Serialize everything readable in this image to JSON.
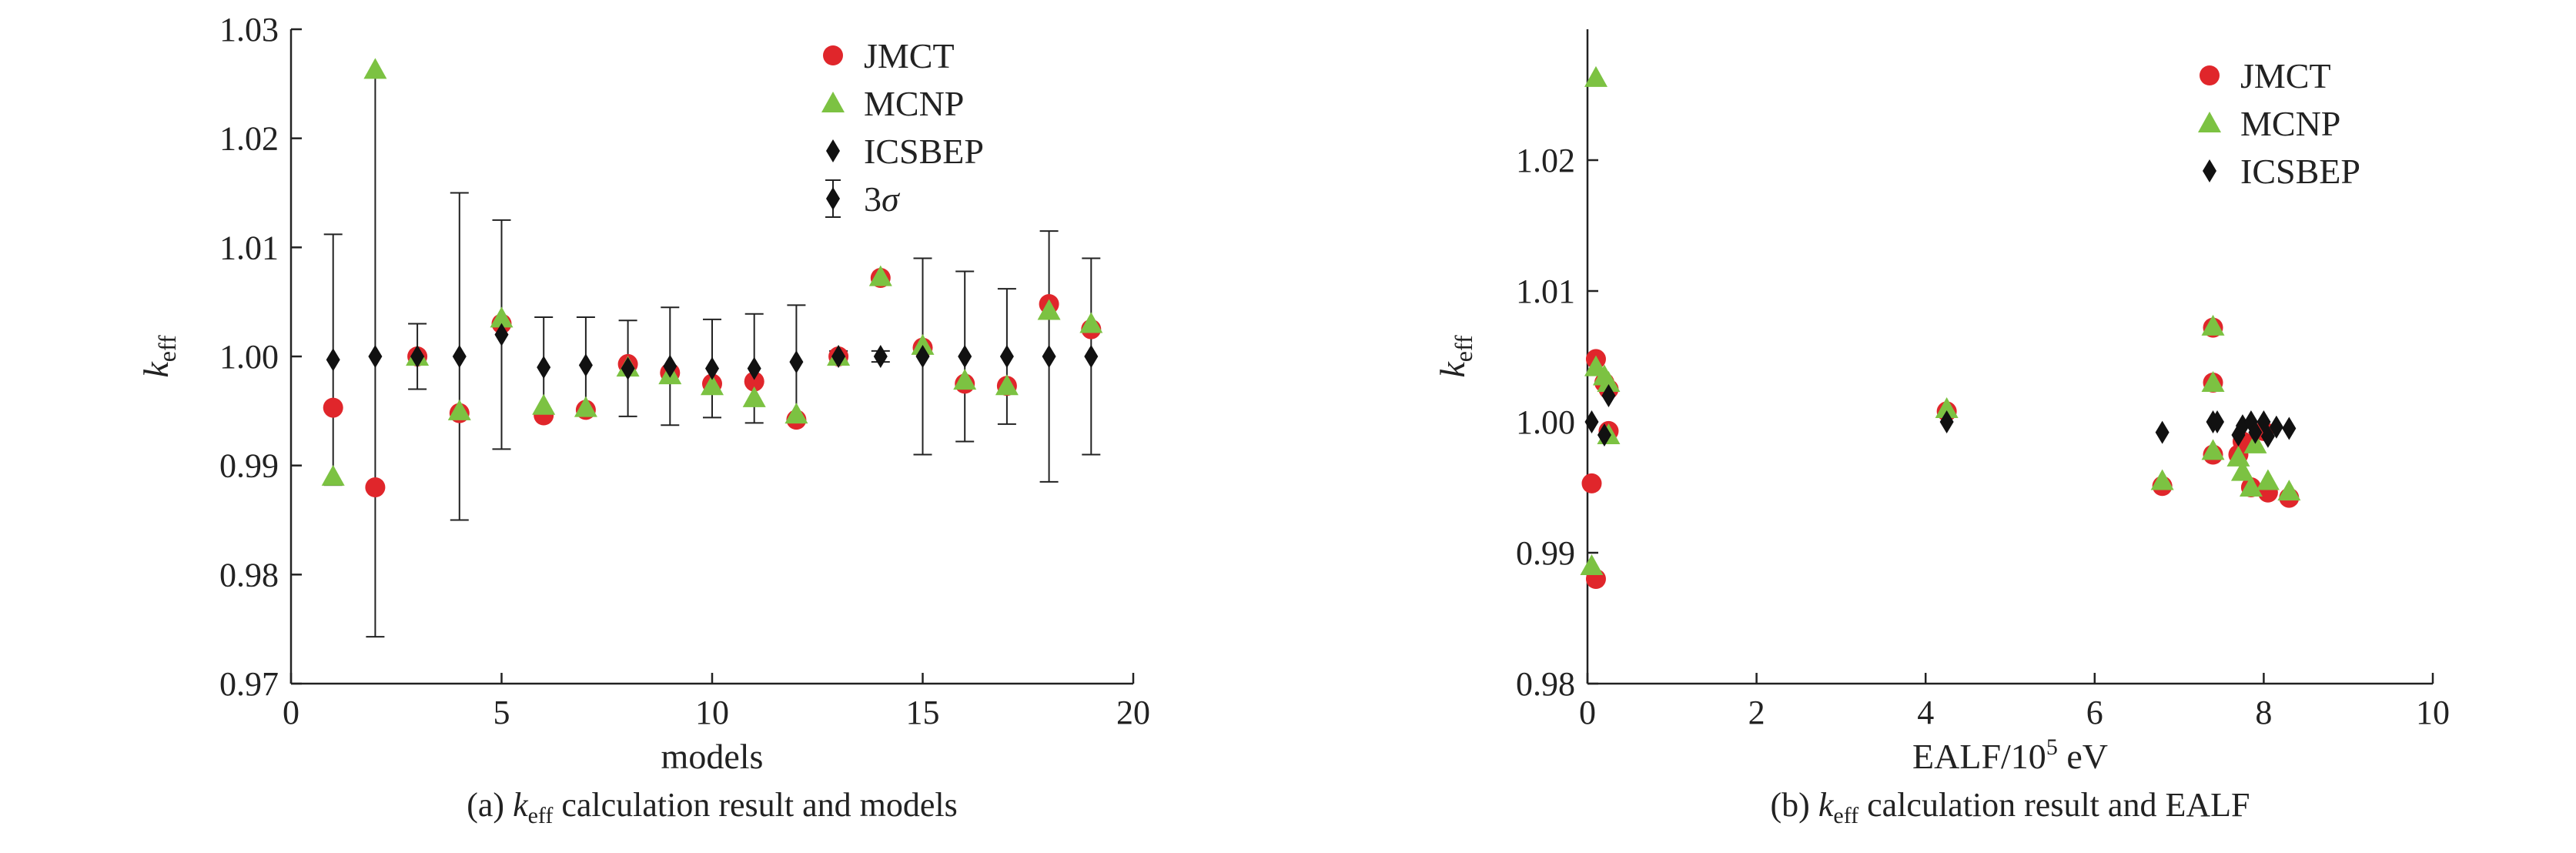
{
  "colors": {
    "jmct": "#e0262b",
    "mcnp": "#7cc242",
    "icsbep": "#111111"
  },
  "chart_data": [
    {
      "type": "scatter",
      "caption": {
        "prefix": "(a) ",
        "k": "k",
        "sub": "eff",
        "rest": " calculation result and models"
      },
      "xlabel": "models",
      "ylabel": {
        "k": "k",
        "sub": "eff"
      },
      "xlim": [
        0,
        20
      ],
      "ylim": [
        0.97,
        1.03
      ],
      "xticks": [
        0,
        5,
        10,
        15,
        20
      ],
      "xtick_labels": [
        "0",
        "5",
        "10",
        "15",
        "20"
      ],
      "yticks": [
        0.97,
        0.98,
        0.99,
        1.0,
        1.01,
        1.02,
        1.03
      ],
      "ytick_labels": [
        "0.97",
        "0.98",
        "0.99",
        "1.00",
        "1.01",
        "1.02",
        "1.03"
      ],
      "legend": {
        "position": "top-right",
        "entries": [
          {
            "label": "JMCT",
            "marker": "circle",
            "series": "jmct"
          },
          {
            "label": "MCNP",
            "marker": "triangle",
            "series": "mcnp"
          },
          {
            "label": "ICSBEP",
            "marker": "diamond",
            "series": "icsbep"
          },
          {
            "label": "3",
            "label_italic": "σ",
            "marker": "diamond-errorbar",
            "series": "icsbep"
          }
        ]
      },
      "x": [
        1,
        2,
        3,
        4,
        5,
        6,
        7,
        8,
        9,
        10,
        11,
        12,
        13,
        14,
        15,
        16,
        17,
        18,
        19
      ],
      "series": [
        {
          "name": "JMCT",
          "key": "jmct",
          "values": [
            0.9953,
            0.988,
            1.0,
            0.9948,
            1.003,
            0.9946,
            0.9951,
            0.9993,
            0.9985,
            0.9975,
            0.9977,
            0.9942,
            1.0,
            1.0072,
            1.0008,
            0.9975,
            0.9973,
            1.0048,
            1.0025
          ]
        },
        {
          "name": "MCNP",
          "key": "mcnp",
          "values": [
            0.989,
            1.0263,
            1.0,
            0.995,
            1.0035,
            0.9955,
            0.9953,
            0.999,
            0.9983,
            0.9973,
            0.9962,
            0.9947,
            1.0,
            1.0073,
            1.001,
            0.9978,
            0.9973,
            1.0042,
            1.003
          ]
        },
        {
          "name": "ICSBEP",
          "key": "icsbep",
          "values": [
            0.9997,
            1.0,
            1.0,
            1.0,
            1.002,
            0.999,
            0.9992,
            0.9989,
            0.9991,
            0.9989,
            0.9989,
            0.9995,
            1.0,
            1.0,
            1.0,
            1.0,
            1.0,
            1.0,
            1.0
          ]
        }
      ],
      "uncertainty_3sigma": [
        0.0115,
        0.0257,
        0.003,
        0.015,
        0.0105,
        0.0046,
        0.0044,
        0.0044,
        0.0054,
        0.0045,
        0.005,
        0.0052,
        0.0005,
        0.0005,
        0.009,
        0.0078,
        0.0062,
        0.0115,
        0.009
      ]
    },
    {
      "type": "scatter",
      "caption": {
        "prefix": "(b) ",
        "k": "k",
        "sub": "eff",
        "rest": " calculation result and EALF"
      },
      "xlabel": {
        "base": "EALF/10",
        "sup": "5",
        "unit": " eV"
      },
      "ylabel": {
        "k": "k",
        "sub": "eff"
      },
      "xlim": [
        0,
        10
      ],
      "ylim": [
        0.98,
        1.03
      ],
      "xticks": [
        0,
        2,
        4,
        6,
        8,
        10
      ],
      "xtick_labels": [
        "0",
        "2",
        "4",
        "6",
        "8",
        "10"
      ],
      "yticks": [
        0.98,
        0.99,
        1.0,
        1.01,
        1.02
      ],
      "ytick_labels": [
        "0.98",
        "0.99",
        "1.00",
        "1.01",
        "1.02"
      ],
      "legend": {
        "position": "top-right",
        "entries": [
          {
            "label": "JMCT",
            "marker": "circle",
            "series": "jmct"
          },
          {
            "label": "MCNP",
            "marker": "triangle",
            "series": "mcnp"
          },
          {
            "label": "ICSBEP",
            "marker": "diamond",
            "series": "icsbep"
          }
        ]
      },
      "series": [
        {
          "name": "JMCT",
          "key": "jmct",
          "points": [
            [
              0.05,
              0.9953
            ],
            [
              0.1,
              0.988
            ],
            [
              0.1,
              1.0048
            ],
            [
              0.2,
              1.003
            ],
            [
              0.25,
              0.9993
            ],
            [
              0.25,
              1.0025
            ],
            [
              4.25,
              1.0008
            ],
            [
              6.8,
              0.9951
            ],
            [
              7.4,
              0.9975
            ],
            [
              7.4,
              1.003
            ],
            [
              7.4,
              1.0072
            ],
            [
              7.7,
              0.9975
            ],
            [
              7.75,
              0.9985
            ],
            [
              7.85,
              0.995
            ],
            [
              8.0,
              0.9993
            ],
            [
              8.05,
              0.9946
            ],
            [
              8.3,
              0.9942
            ]
          ]
        },
        {
          "name": "MCNP",
          "key": "mcnp",
          "points": [
            [
              0.05,
              0.989
            ],
            [
              0.1,
              1.0263
            ],
            [
              0.1,
              1.0042
            ],
            [
              0.2,
              1.0035
            ],
            [
              0.25,
              0.999
            ],
            [
              0.25,
              1.003
            ],
            [
              4.25,
              1.001
            ],
            [
              6.8,
              0.9955
            ],
            [
              7.4,
              0.9978
            ],
            [
              7.4,
              1.003
            ],
            [
              7.4,
              1.0073
            ],
            [
              7.7,
              0.9973
            ],
            [
              7.75,
              0.9962
            ],
            [
              7.85,
              0.995
            ],
            [
              7.9,
              0.9983
            ],
            [
              8.05,
              0.9955
            ],
            [
              8.3,
              0.9947
            ]
          ]
        },
        {
          "name": "ICSBEP",
          "key": "icsbep",
          "points": [
            [
              0.05,
              1.0
            ],
            [
              0.2,
              0.999
            ],
            [
              0.25,
              1.002
            ],
            [
              4.25,
              1.0
            ],
            [
              6.8,
              0.9992
            ],
            [
              7.4,
              1.0
            ],
            [
              7.45,
              1.0
            ],
            [
              7.7,
              0.999
            ],
            [
              7.75,
              0.9997
            ],
            [
              7.85,
              1.0
            ],
            [
              7.9,
              0.9992
            ],
            [
              8.0,
              1.0
            ],
            [
              8.05,
              0.9989
            ],
            [
              8.15,
              0.9996
            ],
            [
              8.3,
              0.9995
            ]
          ]
        }
      ]
    }
  ]
}
